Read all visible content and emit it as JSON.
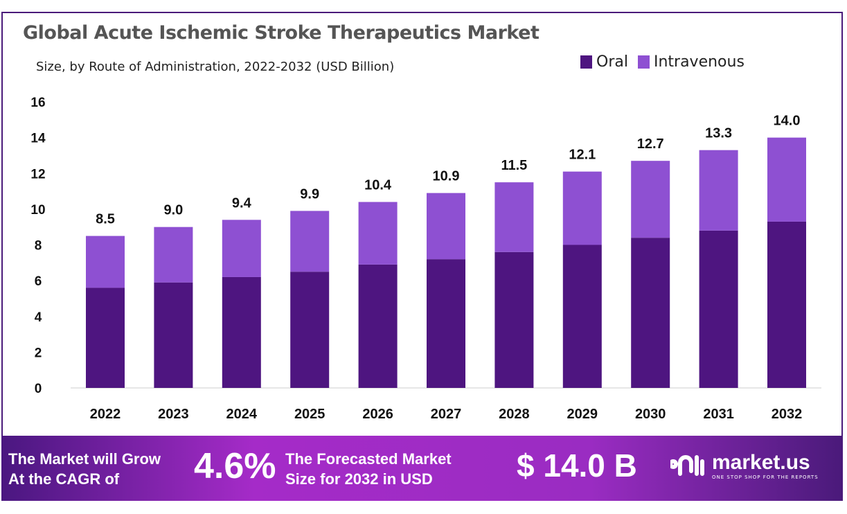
{
  "chart_data": {
    "type": "bar",
    "stacked": true,
    "title": "Global Acute Ischemic Stroke Therapeutics Market",
    "subtitle": "Size, by Route of Administration, 2022-2032 (USD Billion)",
    "categories": [
      "2022",
      "2023",
      "2024",
      "2025",
      "2026",
      "2027",
      "2028",
      "2029",
      "2030",
      "2031",
      "2032"
    ],
    "series": [
      {
        "name": "Oral",
        "color": "#4e1580",
        "values": [
          5.6,
          5.9,
          6.2,
          6.5,
          6.9,
          7.2,
          7.6,
          8.0,
          8.4,
          8.8,
          9.3
        ]
      },
      {
        "name": "Intravenous",
        "color": "#8e50d2",
        "values": [
          2.9,
          3.1,
          3.2,
          3.4,
          3.5,
          3.7,
          3.9,
          4.1,
          4.3,
          4.5,
          4.7
        ]
      }
    ],
    "totals": [
      "8.5",
      "9.0",
      "9.4",
      "9.9",
      "10.4",
      "10.9",
      "11.5",
      "12.1",
      "12.7",
      "13.3",
      "14.0"
    ],
    "ylim": [
      0,
      16
    ],
    "yticks": [
      0,
      2,
      4,
      6,
      8,
      10,
      12,
      14,
      16
    ],
    "grid": false,
    "legend": "top-right"
  },
  "banner": {
    "line1": "The Market will Grow",
    "line2": "At the CAGR of",
    "cagr": "4.6%",
    "line3": "The Forecasted Market",
    "line4": "Size for 2032 in USD",
    "size": "$ 14.0 B",
    "logo_name": "market.us",
    "logo_tag": "ONE STOP SHOP FOR THE REPORTS"
  }
}
